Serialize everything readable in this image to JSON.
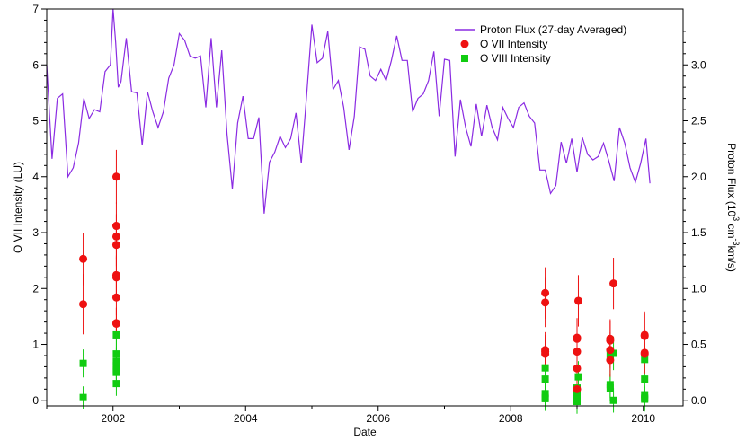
{
  "chart_data": {
    "type": "scatter",
    "title": "",
    "xlabel": "Date",
    "ylabel_left": "O VII Intensity (LU)",
    "ylabel_right_parts": [
      "Proton Flux (10",
      "3",
      " cm",
      "-3",
      "km/s)"
    ],
    "xlim": [
      2001.0,
      2010.6
    ],
    "ylim_left": [
      -0.1,
      7.0
    ],
    "ylim_right": [
      -0.05,
      3.5
    ],
    "x_ticks": [
      2002,
      2004,
      2006,
      2008,
      2010
    ],
    "x_tick_labels": [
      "2002",
      "2004",
      "2006",
      "2008",
      "2010"
    ],
    "y_left_ticks": [
      0,
      1,
      2,
      3,
      4,
      5,
      6,
      7
    ],
    "y_left_tick_labels": [
      "0",
      "1",
      "2",
      "3",
      "4",
      "5",
      "6",
      "7"
    ],
    "y_right_ticks": [
      0,
      0.5,
      1.0,
      1.5,
      2.0,
      2.5,
      3.0
    ],
    "y_right_tick_labels": [
      "0.0",
      "0.5",
      "1.0",
      "1.5",
      "2.0",
      "2.5",
      "3.0"
    ],
    "grid": false,
    "legend_position": "top-right",
    "colors": {
      "flux": "#8a2be2",
      "o7": "#ee1111",
      "o8": "#11cc11"
    },
    "series": [
      {
        "name": "Proton Flux (27-day Averaged)",
        "kind": "line",
        "axis": "right",
        "x": [
          2001.0,
          2001.08,
          2001.16,
          2001.24,
          2001.32,
          2001.4,
          2001.48,
          2001.56,
          2001.64,
          2001.72,
          2001.8,
          2001.88,
          2001.96,
          2002.0,
          2002.04,
          2002.08,
          2002.12,
          2002.2,
          2002.28,
          2002.36,
          2002.44,
          2002.52,
          2002.6,
          2002.68,
          2002.76,
          2002.84,
          2002.92,
          2003.0,
          2003.08,
          2003.16,
          2003.24,
          2003.32,
          2003.4,
          2003.48,
          2003.56,
          2003.64,
          2003.72,
          2003.8,
          2003.88,
          2003.96,
          2004.04,
          2004.12,
          2004.2,
          2004.28,
          2004.36,
          2004.44,
          2004.52,
          2004.6,
          2004.68,
          2004.76,
          2004.84,
          2004.92,
          2005.0,
          2005.08,
          2005.16,
          2005.24,
          2005.32,
          2005.4,
          2005.48,
          2005.56,
          2005.64,
          2005.72,
          2005.8,
          2005.88,
          2005.96,
          2006.04,
          2006.12,
          2006.2,
          2006.28,
          2006.36,
          2006.44,
          2006.52,
          2006.6,
          2006.68,
          2006.76,
          2006.84,
          2006.92,
          2007.0,
          2007.08,
          2007.16,
          2007.24,
          2007.32,
          2007.4,
          2007.48,
          2007.56,
          2007.64,
          2007.72,
          2007.8,
          2007.88,
          2007.96,
          2008.04,
          2008.12,
          2008.2,
          2008.28,
          2008.36,
          2008.44,
          2008.52,
          2008.6,
          2008.68,
          2008.76,
          2008.84,
          2008.92,
          2009.0,
          2009.08,
          2009.16,
          2009.24,
          2009.32,
          2009.4,
          2009.48,
          2009.56,
          2009.64,
          2009.72,
          2009.8,
          2009.88,
          2009.96,
          2010.04,
          2010.1
        ],
        "y": [
          3.0,
          2.16,
          2.7,
          2.74,
          2.0,
          2.08,
          2.3,
          2.7,
          2.52,
          2.6,
          2.58,
          2.94,
          3.0,
          3.5,
          3.2,
          2.8,
          2.85,
          3.24,
          2.76,
          2.75,
          2.28,
          2.76,
          2.58,
          2.44,
          2.58,
          2.88,
          3.0,
          3.28,
          3.22,
          3.08,
          3.06,
          3.08,
          2.62,
          3.24,
          2.62,
          3.13,
          2.38,
          1.89,
          2.48,
          2.72,
          2.34,
          2.34,
          2.53,
          1.67,
          2.13,
          2.22,
          2.36,
          2.26,
          2.34,
          2.57,
          2.12,
          2.72,
          3.36,
          3.02,
          3.06,
          3.3,
          2.78,
          2.86,
          2.62,
          2.24,
          2.54,
          3.16,
          3.14,
          2.9,
          2.86,
          2.96,
          2.86,
          3.04,
          3.26,
          3.04,
          3.04,
          2.58,
          2.7,
          2.74,
          2.86,
          3.12,
          2.54,
          3.05,
          3.04,
          2.18,
          2.69,
          2.44,
          2.27,
          2.65,
          2.36,
          2.64,
          2.44,
          2.33,
          2.62,
          2.52,
          2.44,
          2.62,
          2.66,
          2.54,
          2.48,
          2.06,
          2.06,
          1.85,
          1.92,
          2.31,
          2.12,
          2.34,
          2.04,
          2.35,
          2.2,
          2.15,
          2.18,
          2.3,
          2.14,
          1.96,
          2.44,
          2.3,
          2.08,
          1.95,
          2.12,
          2.34,
          1.94
        ]
      },
      {
        "name": "O VII Intensity",
        "kind": "points",
        "marker": "circle",
        "axis": "left",
        "x": [
          2001.55,
          2001.55,
          2002.05,
          2002.05,
          2002.05,
          2002.05,
          2002.05,
          2002.05,
          2002.05,
          2002.05,
          2002.05,
          2008.52,
          2008.52,
          2008.52,
          2008.52,
          2008.52,
          2009.0,
          2009.0,
          2009.0,
          2009.0,
          2009.0,
          2009.02,
          2009.5,
          2009.5,
          2009.5,
          2009.5,
          2009.55,
          2010.02,
          2010.02,
          2010.02,
          2010.02
        ],
        "y": [
          2.53,
          1.72,
          4.0,
          3.12,
          2.93,
          2.78,
          2.24,
          2.2,
          1.84,
          1.38,
          1.37,
          1.92,
          1.75,
          0.9,
          0.87,
          0.83,
          1.12,
          1.1,
          0.87,
          0.57,
          0.2,
          1.78,
          1.1,
          1.07,
          0.9,
          0.72,
          2.09,
          1.17,
          1.15,
          0.85,
          0.83
        ],
        "err": [
          0.47,
          0.54,
          0.48,
          0.42,
          0.4,
          0.38,
          0.35,
          0.36,
          0.32,
          0.28,
          0.28,
          0.46,
          0.44,
          0.32,
          0.3,
          0.3,
          0.35,
          0.35,
          0.32,
          0.28,
          0.2,
          0.46,
          0.35,
          0.34,
          0.32,
          0.3,
          0.46,
          0.42,
          0.4,
          0.36,
          0.36
        ]
      },
      {
        "name": "O VIII Intensity",
        "kind": "points",
        "marker": "square",
        "axis": "left",
        "x": [
          2001.55,
          2001.55,
          2002.05,
          2002.05,
          2002.05,
          2002.05,
          2002.05,
          2002.05,
          2002.05,
          2008.52,
          2008.52,
          2008.52,
          2008.52,
          2008.52,
          2009.0,
          2009.0,
          2009.0,
          2009.0,
          2009.0,
          2009.02,
          2009.5,
          2009.5,
          2009.5,
          2009.55,
          2009.55,
          2010.02,
          2010.02,
          2010.02,
          2010.02,
          2010.02
        ],
        "y": [
          0.66,
          0.05,
          1.17,
          0.83,
          0.7,
          0.62,
          0.55,
          0.5,
          0.3,
          0.58,
          0.38,
          0.12,
          0.05,
          0.03,
          0.22,
          0.14,
          0.06,
          0.02,
          -0.02,
          0.42,
          0.82,
          0.28,
          0.22,
          0.84,
          0.0,
          0.73,
          0.38,
          0.1,
          0.04,
          0.02
        ],
        "err": [
          0.25,
          0.2,
          0.3,
          0.26,
          0.25,
          0.24,
          0.24,
          0.23,
          0.22,
          0.3,
          0.28,
          0.24,
          0.22,
          0.22,
          0.26,
          0.24,
          0.22,
          0.22,
          0.22,
          0.28,
          0.3,
          0.24,
          0.24,
          0.3,
          0.22,
          0.3,
          0.26,
          0.22,
          0.22,
          0.22
        ]
      }
    ]
  }
}
